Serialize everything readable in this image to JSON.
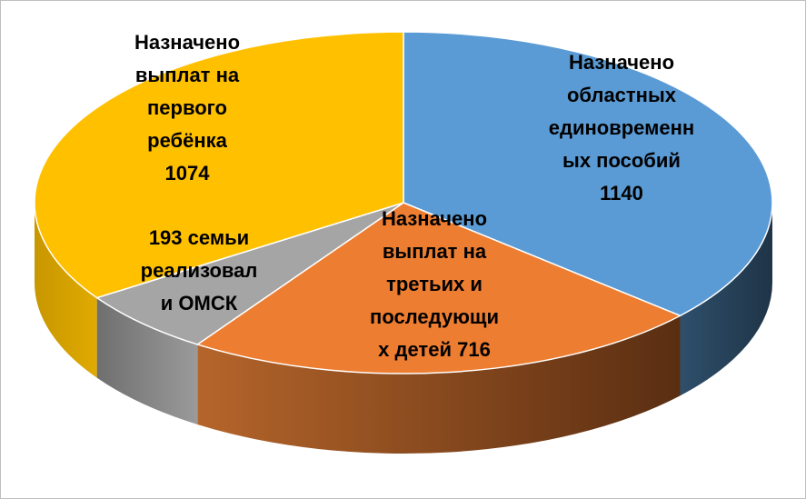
{
  "chart_data": {
    "type": "pie3d",
    "categories": [
      "Назначено областных единовременных пособий",
      "Назначено выплат на третьих и последующих детей",
      "семьи реализовали ОМСК",
      "Назначено выплат на первого ребёнка"
    ],
    "values": [
      1140,
      716,
      193,
      1074
    ],
    "colors": [
      "#5b9bd5",
      "#ed7d31",
      "#a5a5a5",
      "#ffc000"
    ]
  }
}
